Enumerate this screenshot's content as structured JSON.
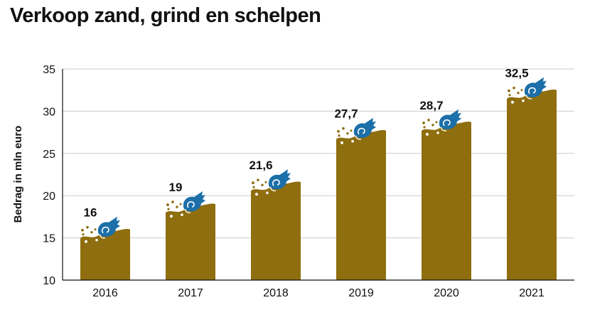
{
  "chart_data": {
    "type": "bar",
    "title": "Verkoop zand, grind en schelpen",
    "xlabel": "",
    "ylabel": "Bedrag in mln euro",
    "categories": [
      "2016",
      "2017",
      "2018",
      "2019",
      "2020",
      "2021"
    ],
    "values": [
      16,
      19,
      21.6,
      27.7,
      28.7,
      32.5
    ],
    "value_labels": [
      "16",
      "19",
      "21,6",
      "27,7",
      "28,7",
      "32,5"
    ],
    "ylim": [
      10,
      35
    ],
    "yticks": [
      10,
      15,
      20,
      25,
      30,
      35
    ],
    "ytick_labels": [
      "10",
      "15",
      "20",
      "25",
      "30",
      "35"
    ],
    "grid": true,
    "colors": {
      "bar": "#8e6e0e",
      "shell": "#1c6fa8",
      "grain": "#8e6e0e",
      "grid": "#cccccc",
      "axis": "#111111"
    },
    "icon": "seashell-icon"
  }
}
